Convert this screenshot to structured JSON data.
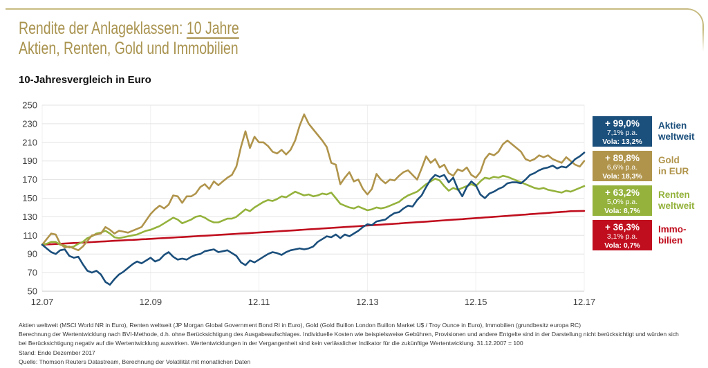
{
  "header": {
    "title_prefix": "Rendite der Anlageklassen: ",
    "title_underlined": "10 Jahre",
    "title_line2": "Aktien, Renten, Gold und Immobilien",
    "chart_heading": "10-Jahresvergleich in Euro"
  },
  "colors": {
    "accent_gold_rule": "#C6BA80",
    "title_gold": "#A9934F",
    "aktien_blue": "#1B4F7C",
    "gold_tan": "#B0944B",
    "renten_green": "#94B23C",
    "immobilien_red": "#C00E1E",
    "grid_gray": "#E3E3E3",
    "axis_text": "#3F3F3F"
  },
  "legend": [
    {
      "id": "aktien",
      "color": "#1B4F7C",
      "pct": "+ 99,0%",
      "pa": "7,1% p.a.",
      "vola": "Vola: 13,2%",
      "label_line1": "Aktien",
      "label_line2": "weltweit"
    },
    {
      "id": "gold",
      "color": "#B0944B",
      "pct": "+ 89,8%",
      "pa": "6,6% p.a.",
      "vola": "Vola: 18,3%",
      "label_line1": "Gold",
      "label_line2": "in EUR"
    },
    {
      "id": "renten",
      "color": "#94B23C",
      "pct": "+ 63,2%",
      "pa": "5,0% p.a.",
      "vola": "Vola: 8,7%",
      "label_line1": "Renten",
      "label_line2": "weltweit"
    },
    {
      "id": "immobilien",
      "color": "#C00E1E",
      "pct": "+ 36,3%",
      "pa": "3,1% p.a.",
      "vola": "Vola: 0,7%",
      "label_line1": "Immo-",
      "label_line2": "bilien"
    }
  ],
  "chart_data": {
    "type": "line",
    "title": "10-Jahresvergleich in Euro",
    "x_axis_note": "monthly index values, 31.12.2007 = 100",
    "ylim": [
      50,
      250
    ],
    "y_ticks": [
      50,
      70,
      90,
      110,
      130,
      150,
      170,
      190,
      210,
      230,
      250
    ],
    "x_tick_labels": [
      "12.07",
      "12.09",
      "12.11",
      "12.13",
      "12.15",
      "12.17"
    ],
    "x_tick_every": 24,
    "grid": true,
    "legend_position": "right",
    "series": [
      {
        "id": "aktien",
        "name": "Aktien weltweit",
        "color": "#1B4F7C",
        "final_return": "+ 99,0%",
        "values": [
          100,
          96,
          92,
          90,
          94,
          95,
          88,
          86,
          87,
          79,
          72,
          70,
          72,
          68,
          60,
          57,
          63,
          68,
          71,
          75,
          79,
          82,
          80,
          83,
          86,
          82,
          84,
          89,
          92,
          87,
          84,
          85,
          84,
          87,
          89,
          90,
          93,
          94,
          95,
          92,
          93,
          94,
          91,
          88,
          81,
          78,
          83,
          81,
          84,
          87,
          90,
          92,
          91,
          89,
          92,
          94,
          95,
          96,
          95,
          96,
          98,
          103,
          106,
          109,
          108,
          111,
          107,
          111,
          109,
          112,
          115,
          119,
          122,
          121,
          125,
          126,
          127,
          131,
          134,
          135,
          139,
          142,
          141,
          148,
          153,
          162,
          170,
          175,
          173,
          175,
          167,
          172,
          160,
          152,
          162,
          168,
          164,
          154,
          150,
          155,
          157,
          160,
          162,
          166,
          167,
          167,
          166,
          170,
          175,
          177,
          180,
          182,
          183,
          185,
          182,
          184,
          183,
          187,
          192,
          195,
          199
        ]
      },
      {
        "id": "gold",
        "name": "Gold in EUR",
        "color": "#B0944B",
        "final_return": "+ 89,8%",
        "values": [
          100,
          106,
          112,
          111,
          101,
          97,
          98,
          96,
          94,
          98,
          104,
          110,
          111,
          112,
          119,
          116,
          112,
          115,
          114,
          113,
          115,
          117,
          119,
          126,
          133,
          138,
          142,
          139,
          143,
          153,
          152,
          145,
          152,
          152,
          155,
          162,
          165,
          160,
          168,
          164,
          168,
          172,
          175,
          184,
          205,
          222,
          204,
          216,
          210,
          210,
          206,
          200,
          198,
          202,
          197,
          202,
          212,
          228,
          240,
          230,
          224,
          218,
          212,
          205,
          188,
          186,
          165,
          172,
          178,
          168,
          170,
          160,
          154,
          160,
          176,
          170,
          166,
          170,
          169,
          174,
          178,
          180,
          175,
          170,
          182,
          195,
          188,
          192,
          183,
          186,
          177,
          174,
          181,
          179,
          183,
          175,
          172,
          178,
          192,
          198,
          196,
          200,
          208,
          212,
          208,
          204,
          200,
          192,
          190,
          192,
          196,
          194,
          196,
          192,
          190,
          188,
          194,
          190,
          186,
          184,
          190
        ]
      },
      {
        "id": "renten",
        "name": "Renten weltweit",
        "color": "#94B23C",
        "final_return": "+ 63,2%",
        "values": [
          100,
          101,
          103,
          103,
          100,
          99,
          97,
          98,
          101,
          103,
          107,
          109,
          112,
          113,
          115,
          112,
          108,
          107,
          108,
          109,
          110,
          111,
          113,
          115,
          116,
          118,
          120,
          123,
          126,
          129,
          127,
          123,
          125,
          127,
          130,
          131,
          129,
          126,
          124,
          124,
          126,
          128,
          128,
          130,
          134,
          138,
          136,
          140,
          143,
          146,
          148,
          147,
          149,
          152,
          151,
          154,
          157,
          155,
          153,
          154,
          152,
          153,
          155,
          154,
          156,
          150,
          144,
          142,
          140,
          139,
          141,
          139,
          137,
          138,
          140,
          139,
          140,
          142,
          144,
          146,
          150,
          153,
          155,
          157,
          161,
          165,
          168,
          171,
          169,
          163,
          158,
          161,
          159,
          161,
          163,
          165,
          163,
          168,
          172,
          171,
          173,
          172,
          174,
          173,
          171,
          169,
          167,
          165,
          163,
          161,
          160,
          161,
          159,
          158,
          157,
          156,
          158,
          157,
          159,
          161,
          163
        ]
      },
      {
        "id": "immobilien",
        "name": "Immobilien",
        "color": "#C00E1E",
        "final_return": "+ 36,3%",
        "values": [
          100,
          100.3,
          100.5,
          100.8,
          101.0,
          101.3,
          101.5,
          101.8,
          102.0,
          102.3,
          102.6,
          102.8,
          103.1,
          103.4,
          103.6,
          103.9,
          104.2,
          104.4,
          104.7,
          105.0,
          105.2,
          105.5,
          105.8,
          106.0,
          106.3,
          106.6,
          106.9,
          107.1,
          107.4,
          107.7,
          108.0,
          108.2,
          108.5,
          108.8,
          109.1,
          109.4,
          109.6,
          109.9,
          110.2,
          110.5,
          110.8,
          111.1,
          111.4,
          111.7,
          112.0,
          112.2,
          112.5,
          112.8,
          113.1,
          113.4,
          113.7,
          114.0,
          114.3,
          114.6,
          114.9,
          115.2,
          115.5,
          115.9,
          116.2,
          116.5,
          116.8,
          117.1,
          117.4,
          117.7,
          118.0,
          118.3,
          118.6,
          119.0,
          119.3,
          119.6,
          119.9,
          120.2,
          120.6,
          120.9,
          121.2,
          121.5,
          121.9,
          122.2,
          122.5,
          122.8,
          123.2,
          123.5,
          123.8,
          124.2,
          124.5,
          124.8,
          125.2,
          125.5,
          125.8,
          126.2,
          126.5,
          126.9,
          127.2,
          127.5,
          127.9,
          128.2,
          128.6,
          128.9,
          129.3,
          129.6,
          130.0,
          130.3,
          130.7,
          131.0,
          131.4,
          131.7,
          132.1,
          132.4,
          132.8,
          133.1,
          133.5,
          133.8,
          134.2,
          134.6,
          134.9,
          135.3,
          135.6,
          136.0,
          136.1,
          136.2,
          136.3
        ]
      }
    ]
  },
  "footnotes": [
    "Aktien weltweit (MSCI World NR in Euro), Renten weltweit (JP Morgan Global Government Bond RI in Euro), Gold (Gold Buillon London Buillon Market U$ / Troy Ounce in Euro), Immobilien (grundbesitz europa RC)",
    "Berechnung der Wertentwicklung nach BVI-Methode, d.h. ohne Berücksichtigung des Ausgabeaufschlages. Individuelle Kosten wie beispielsweise Gebühren, Provisionen und andere Entgelte sind in der Darstellung nicht berücksichtigt und würden sich",
    "bei Berücksichtigung negativ auf die Wertentwicklung auswirken. Wertentwicklungen in der Vergangenheit sind kein verlässlicher Indikator für die zukünftige Wertentwicklung. 31.12.2007 = 100",
    "Stand: Ende Dezember 2017",
    "Quelle: Thomson Reuters Datastream, Berechnung der Volatilität mit monatlichen Daten"
  ]
}
